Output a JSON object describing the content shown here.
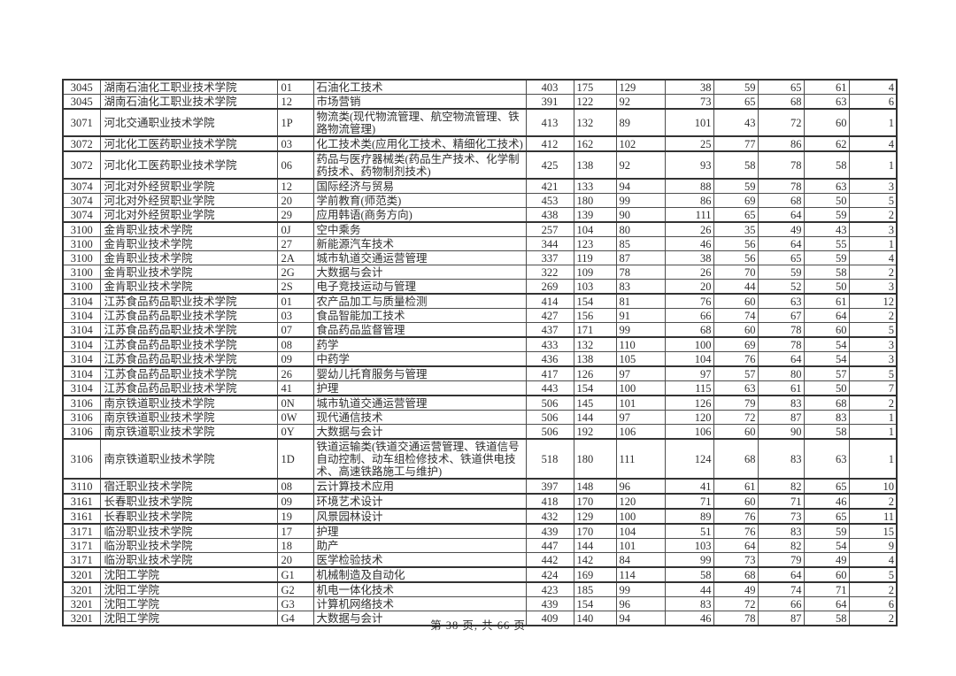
{
  "footer": {
    "text": "第 38 页, 共 66 页"
  },
  "table": {
    "rows": [
      {
        "code": "3045",
        "school": "湖南石油化工职业技术学院",
        "major_code": "01",
        "major": "石油化工技术",
        "scores": [
          "403",
          "175",
          "129",
          "38",
          "59",
          "65",
          "61",
          "4"
        ],
        "thick": false
      },
      {
        "code": "3045",
        "school": "湖南石油化工职业技术学院",
        "major_code": "12",
        "major": "市场营销",
        "scores": [
          "391",
          "122",
          "92",
          "73",
          "65",
          "68",
          "63",
          "6"
        ],
        "thick": false
      },
      {
        "code": "3071",
        "school": "河北交通职业技术学院",
        "major_code": "1P",
        "major": "物流类(现代物流管理、航空物流管理、铁路物流管理)",
        "scores": [
          "413",
          "132",
          "89",
          "101",
          "43",
          "72",
          "60",
          "1"
        ],
        "thick": true
      },
      {
        "code": "3072",
        "school": "河北化工医药职业技术学院",
        "major_code": "03",
        "major": "化工技术类(应用化工技术、精细化工技术)",
        "scores": [
          "412",
          "162",
          "102",
          "25",
          "77",
          "86",
          "62",
          "4"
        ],
        "thick": true
      },
      {
        "code": "3072",
        "school": "河北化工医药职业技术学院",
        "major_code": "06",
        "major": "药品与医疗器械类(药品生产技术、化学制药技术、药物制剂技术)",
        "scores": [
          "425",
          "138",
          "92",
          "93",
          "58",
          "78",
          "58",
          "1"
        ],
        "thick": true
      },
      {
        "code": "3074",
        "school": "河北对外经贸职业学院",
        "major_code": "12",
        "major": "国际经济与贸易",
        "scores": [
          "421",
          "133",
          "94",
          "88",
          "59",
          "78",
          "63",
          "3"
        ],
        "thick": true
      },
      {
        "code": "3074",
        "school": "河北对外经贸职业学院",
        "major_code": "20",
        "major": "学前教育(师范类)",
        "scores": [
          "453",
          "180",
          "99",
          "86",
          "69",
          "68",
          "50",
          "5"
        ],
        "thick": false
      },
      {
        "code": "3074",
        "school": "河北对外经贸职业学院",
        "major_code": "29",
        "major": "应用韩语(商务方向)",
        "scores": [
          "438",
          "139",
          "90",
          "111",
          "65",
          "64",
          "59",
          "2"
        ],
        "thick": false
      },
      {
        "code": "3100",
        "school": "金肯职业技术学院",
        "major_code": "0J",
        "major": "空中乘务",
        "scores": [
          "257",
          "104",
          "80",
          "26",
          "35",
          "49",
          "43",
          "3"
        ],
        "thick": true
      },
      {
        "code": "3100",
        "school": "金肯职业技术学院",
        "major_code": "27",
        "major": "新能源汽车技术",
        "scores": [
          "344",
          "123",
          "85",
          "46",
          "56",
          "64",
          "55",
          "1"
        ],
        "thick": false
      },
      {
        "code": "3100",
        "school": "金肯职业技术学院",
        "major_code": "2A",
        "major": "城市轨道交通运营管理",
        "scores": [
          "337",
          "119",
          "87",
          "38",
          "56",
          "65",
          "59",
          "4"
        ],
        "thick": false
      },
      {
        "code": "3100",
        "school": "金肯职业技术学院",
        "major_code": "2G",
        "major": "大数据与会计",
        "scores": [
          "322",
          "109",
          "78",
          "26",
          "70",
          "59",
          "58",
          "2"
        ],
        "thick": false
      },
      {
        "code": "3100",
        "school": "金肯职业技术学院",
        "major_code": "2S",
        "major": "电子竞技运动与管理",
        "scores": [
          "269",
          "103",
          "83",
          "20",
          "44",
          "52",
          "50",
          "3"
        ],
        "thick": false
      },
      {
        "code": "3104",
        "school": "江苏食品药品职业技术学院",
        "major_code": "01",
        "major": "农产品加工与质量检测",
        "scores": [
          "414",
          "154",
          "81",
          "76",
          "60",
          "63",
          "61",
          "12"
        ],
        "thick": true
      },
      {
        "code": "3104",
        "school": "江苏食品药品职业技术学院",
        "major_code": "03",
        "major": "食品智能加工技术",
        "scores": [
          "427",
          "156",
          "91",
          "66",
          "74",
          "67",
          "64",
          "2"
        ],
        "thick": false
      },
      {
        "code": "3104",
        "school": "江苏食品药品职业技术学院",
        "major_code": "07",
        "major": "食品药品监督管理",
        "scores": [
          "437",
          "171",
          "99",
          "68",
          "60",
          "78",
          "60",
          "5"
        ],
        "thick": false
      },
      {
        "code": "3104",
        "school": "江苏食品药品职业技术学院",
        "major_code": "08",
        "major": "药学",
        "scores": [
          "433",
          "132",
          "110",
          "100",
          "69",
          "78",
          "54",
          "3"
        ],
        "thick": true
      },
      {
        "code": "3104",
        "school": "江苏食品药品职业技术学院",
        "major_code": "09",
        "major": "中药学",
        "scores": [
          "436",
          "138",
          "105",
          "104",
          "76",
          "64",
          "54",
          "3"
        ],
        "thick": false
      },
      {
        "code": "3104",
        "school": "江苏食品药品职业技术学院",
        "major_code": "26",
        "major": "婴幼儿托育服务与管理",
        "scores": [
          "417",
          "126",
          "97",
          "97",
          "57",
          "80",
          "57",
          "5"
        ],
        "thick": true
      },
      {
        "code": "3104",
        "school": "江苏食品药品职业技术学院",
        "major_code": "41",
        "major": "护理",
        "scores": [
          "443",
          "154",
          "100",
          "115",
          "63",
          "61",
          "50",
          "7"
        ],
        "thick": false
      },
      {
        "code": "3106",
        "school": "南京铁道职业技术学院",
        "major_code": "0N",
        "major": "城市轨道交通运营管理",
        "scores": [
          "506",
          "145",
          "101",
          "126",
          "79",
          "83",
          "68",
          "2"
        ],
        "thick": true
      },
      {
        "code": "3106",
        "school": "南京铁道职业技术学院",
        "major_code": "0W",
        "major": "现代通信技术",
        "scores": [
          "506",
          "144",
          "97",
          "120",
          "72",
          "87",
          "83",
          "1"
        ],
        "thick": false
      },
      {
        "code": "3106",
        "school": "南京铁道职业技术学院",
        "major_code": "0Y",
        "major": "大数据与会计",
        "scores": [
          "506",
          "192",
          "106",
          "106",
          "60",
          "90",
          "58",
          "1"
        ],
        "thick": false
      },
      {
        "code": "3106",
        "school": "南京铁道职业技术学院",
        "major_code": "1D",
        "major": "铁道运输类(铁道交通运营管理、铁道信号自动控制、动车组检修技术、铁道供电技术、高速铁路施工与维护)",
        "scores": [
          "518",
          "180",
          "111",
          "124",
          "68",
          "83",
          "63",
          "1"
        ],
        "thick": true
      },
      {
        "code": "3110",
        "school": "宿迁职业技术学院",
        "major_code": "08",
        "major": "云计算技术应用",
        "scores": [
          "397",
          "148",
          "96",
          "41",
          "61",
          "82",
          "65",
          "10"
        ],
        "thick": true
      },
      {
        "code": "3161",
        "school": "长春职业技术学院",
        "major_code": "09",
        "major": "环境艺术设计",
        "scores": [
          "418",
          "170",
          "120",
          "71",
          "60",
          "71",
          "46",
          "2"
        ],
        "thick": true
      },
      {
        "code": "3161",
        "school": "长春职业技术学院",
        "major_code": "19",
        "major": "风景园林设计",
        "scores": [
          "432",
          "129",
          "100",
          "89",
          "76",
          "73",
          "65",
          "11"
        ],
        "thick": true
      },
      {
        "code": "3171",
        "school": "临汾职业技术学院",
        "major_code": "17",
        "major": "护理",
        "scores": [
          "439",
          "170",
          "104",
          "51",
          "76",
          "83",
          "59",
          "15"
        ],
        "thick": true
      },
      {
        "code": "3171",
        "school": "临汾职业技术学院",
        "major_code": "18",
        "major": "助产",
        "scores": [
          "447",
          "144",
          "101",
          "103",
          "64",
          "82",
          "54",
          "9"
        ],
        "thick": false
      },
      {
        "code": "3171",
        "school": "临汾职业技术学院",
        "major_code": "20",
        "major": "医学检验技术",
        "scores": [
          "442",
          "142",
          "84",
          "99",
          "73",
          "79",
          "49",
          "4"
        ],
        "thick": false
      },
      {
        "code": "3201",
        "school": "沈阳工学院",
        "major_code": "G1",
        "major": "机械制造及自动化",
        "scores": [
          "424",
          "169",
          "114",
          "58",
          "68",
          "64",
          "60",
          "5"
        ],
        "thick": true
      },
      {
        "code": "3201",
        "school": "沈阳工学院",
        "major_code": "G2",
        "major": "机电一体化技术",
        "scores": [
          "423",
          "185",
          "99",
          "44",
          "49",
          "74",
          "71",
          "2"
        ],
        "thick": true
      },
      {
        "code": "3201",
        "school": "沈阳工学院",
        "major_code": "G3",
        "major": "计算机网络技术",
        "scores": [
          "439",
          "154",
          "96",
          "83",
          "72",
          "66",
          "64",
          "6"
        ],
        "thick": false
      },
      {
        "code": "3201",
        "school": "沈阳工学院",
        "major_code": "G4",
        "major": "大数据与会计",
        "scores": [
          "409",
          "140",
          "94",
          "46",
          "78",
          "87",
          "58",
          "2"
        ],
        "thick": false
      }
    ]
  }
}
